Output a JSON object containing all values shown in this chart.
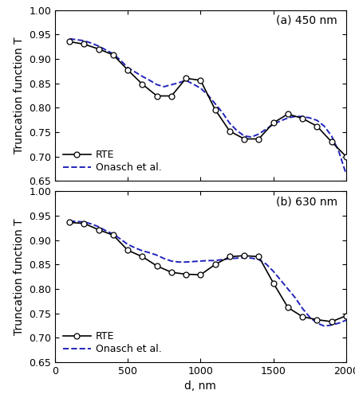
{
  "panel_a": {
    "label": "(a) 450 nm",
    "rte_x": [
      100,
      200,
      300,
      400,
      500,
      600,
      700,
      800,
      900,
      1000,
      1100,
      1200,
      1300,
      1400,
      1500,
      1600,
      1700,
      1800,
      1900,
      2000
    ],
    "rte_y": [
      0.935,
      0.93,
      0.92,
      0.908,
      0.877,
      0.848,
      0.824,
      0.824,
      0.86,
      0.856,
      0.796,
      0.752,
      0.736,
      0.736,
      0.769,
      0.787,
      0.778,
      0.762,
      0.73,
      0.7
    ],
    "onasch_x": [
      100,
      150,
      200,
      250,
      300,
      350,
      400,
      450,
      500,
      550,
      600,
      650,
      700,
      750,
      800,
      850,
      900,
      950,
      1000,
      1050,
      1100,
      1150,
      1200,
      1250,
      1300,
      1350,
      1400,
      1450,
      1500,
      1550,
      1600,
      1650,
      1700,
      1750,
      1800,
      1850,
      1900,
      1950,
      2000
    ],
    "onasch_y": [
      0.941,
      0.939,
      0.937,
      0.932,
      0.926,
      0.918,
      0.91,
      0.897,
      0.882,
      0.873,
      0.864,
      0.856,
      0.847,
      0.843,
      0.847,
      0.851,
      0.856,
      0.848,
      0.84,
      0.826,
      0.808,
      0.79,
      0.768,
      0.753,
      0.742,
      0.74,
      0.746,
      0.756,
      0.766,
      0.773,
      0.779,
      0.782,
      0.782,
      0.779,
      0.774,
      0.762,
      0.742,
      0.71,
      0.664
    ]
  },
  "panel_b": {
    "label": "(b) 630 nm",
    "rte_x": [
      100,
      200,
      300,
      400,
      500,
      600,
      700,
      800,
      900,
      1000,
      1100,
      1200,
      1300,
      1400,
      1500,
      1600,
      1700,
      1800,
      1900,
      2000
    ],
    "rte_y": [
      0.936,
      0.934,
      0.921,
      0.91,
      0.879,
      0.866,
      0.847,
      0.834,
      0.83,
      0.829,
      0.85,
      0.866,
      0.868,
      0.866,
      0.812,
      0.762,
      0.743,
      0.737,
      0.733,
      0.745
    ],
    "onasch_x": [
      100,
      150,
      200,
      250,
      300,
      350,
      400,
      450,
      500,
      550,
      600,
      650,
      700,
      750,
      800,
      850,
      900,
      950,
      1000,
      1050,
      1100,
      1150,
      1200,
      1250,
      1300,
      1350,
      1400,
      1450,
      1500,
      1550,
      1600,
      1650,
      1700,
      1750,
      1800,
      1850,
      1900,
      1950,
      2000
    ],
    "onasch_y": [
      0.939,
      0.938,
      0.937,
      0.933,
      0.927,
      0.919,
      0.912,
      0.902,
      0.891,
      0.884,
      0.878,
      0.874,
      0.869,
      0.862,
      0.857,
      0.855,
      0.855,
      0.856,
      0.857,
      0.858,
      0.858,
      0.86,
      0.862,
      0.863,
      0.864,
      0.863,
      0.86,
      0.851,
      0.836,
      0.818,
      0.8,
      0.782,
      0.76,
      0.742,
      0.73,
      0.724,
      0.726,
      0.73,
      0.736
    ]
  },
  "rte_color": "#000000",
  "onasch_color": "#2222bb",
  "marker": "o",
  "marker_size": 5,
  "marker_facecolor": "white",
  "marker_edgecolor": "#000000",
  "marker_edgewidth": 0.9,
  "rte_linewidth": 1.2,
  "onasch_linewidth": 1.4,
  "onasch_linestyle": "--",
  "xlim": [
    0,
    2000
  ],
  "ylim": [
    0.65,
    1.0
  ],
  "xlabel": "d, nm",
  "ylabel": "Truncation function T",
  "yticks": [
    0.65,
    0.7,
    0.75,
    0.8,
    0.85,
    0.9,
    0.95,
    1.0
  ],
  "xticks": [
    0,
    500,
    1000,
    1500,
    2000
  ],
  "legend_rte": "RTE",
  "legend_onasch": "Onasch et al.",
  "fontsize": 9,
  "label_fontsize": 10,
  "tick_fontsize": 9,
  "annot_fontsize": 10
}
